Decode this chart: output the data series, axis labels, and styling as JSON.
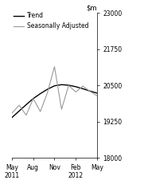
{
  "x_trend": [
    0,
    1,
    2,
    3,
    4,
    5,
    6,
    7,
    8,
    9,
    10,
    11,
    12
  ],
  "y_trend": [
    19400,
    19620,
    19840,
    20050,
    20220,
    20370,
    20490,
    20530,
    20510,
    20460,
    20390,
    20310,
    20240
  ],
  "x_seasonal": [
    0,
    1,
    2,
    3,
    4,
    5,
    6,
    7,
    8,
    9,
    10,
    11,
    12
  ],
  "y_seasonal": [
    19550,
    19820,
    19480,
    20050,
    19600,
    20250,
    21150,
    19680,
    20500,
    20280,
    20480,
    20300,
    20150
  ],
  "trend_color": "#000000",
  "seasonal_color": "#999999",
  "trend_linewidth": 1.0,
  "seasonal_linewidth": 0.8,
  "ylim": [
    18000,
    23000
  ],
  "yticks": [
    18000,
    19250,
    20500,
    21750,
    23000
  ],
  "ytick_labels": [
    "18000",
    "19250",
    "20500",
    "21750",
    "23000"
  ],
  "xtick_positions": [
    0,
    3,
    6,
    9,
    12
  ],
  "xtick_labels_line1": [
    "May",
    "Aug",
    "Nov",
    "Feb",
    "May"
  ],
  "xtick_labels_line2": [
    "2011",
    "",
    "",
    "2012",
    ""
  ],
  "legend_labels": [
    "Trend",
    "Seasonally Adjusted"
  ],
  "background_color": "#ffffff",
  "legend_fontsize": 5.5,
  "tick_fontsize": 5.5,
  "ylabel_fontsize": 6.0
}
